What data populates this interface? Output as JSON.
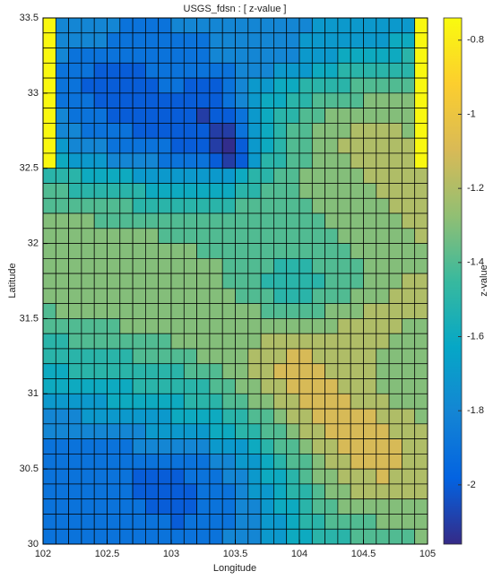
{
  "chart_data": {
    "type": "heatmap",
    "title": "USGS_fdsn : [ z-value ]",
    "x_label": "Longitude",
    "y_label": "Latitude",
    "colorbar_label": "z-value",
    "colormap": "parula",
    "xlim": [
      102,
      105
    ],
    "ylim": [
      30,
      33.5
    ],
    "xticks": [
      102,
      102.5,
      103,
      103.5,
      104,
      104.5,
      105
    ],
    "yticks": [
      30,
      30.5,
      31,
      31.5,
      32,
      32.5,
      33,
      33.5
    ],
    "zlim": [
      -2.16,
      -0.74
    ],
    "zticks": [
      -2,
      -1.8,
      -1.6,
      -1.4,
      -1.2,
      -1,
      -0.8
    ],
    "z": [
      [
        -0.75,
        -1.8,
        -1.8,
        -1.8,
        -1.8,
        -1.8,
        -1.9,
        -1.9,
        -1.9,
        -1.9,
        -1.8,
        -1.8,
        -1.8,
        -1.8,
        -1.8,
        -1.8,
        -1.8,
        -1.8,
        -1.8,
        -1.8,
        -1.8,
        -1.7,
        -1.7,
        -1.7,
        -1.7,
        -1.7,
        -1.7,
        -1.7,
        -1.7,
        -0.75
      ],
      [
        -0.75,
        -1.8,
        -1.8,
        -1.8,
        -1.8,
        -1.9,
        -1.9,
        -1.9,
        -1.9,
        -1.9,
        -1.9,
        -1.9,
        -1.9,
        -1.8,
        -1.8,
        -1.8,
        -1.8,
        -1.8,
        -1.8,
        -1.8,
        -1.7,
        -1.7,
        -1.7,
        -1.7,
        -1.7,
        -1.7,
        -1.7,
        -1.6,
        -1.6,
        -0.75
      ],
      [
        -0.75,
        -1.8,
        -1.9,
        -1.9,
        -1.9,
        -1.9,
        -1.9,
        -1.9,
        -1.9,
        -1.9,
        -1.9,
        -1.9,
        -1.9,
        -1.8,
        -1.8,
        -1.8,
        -1.8,
        -1.8,
        -1.8,
        -1.8,
        -1.7,
        -1.7,
        -1.7,
        -1.6,
        -1.6,
        -1.6,
        -1.6,
        -1.6,
        -1.5,
        -0.75
      ],
      [
        -0.75,
        -1.9,
        -1.9,
        -1.9,
        -2.0,
        -2.0,
        -2.0,
        -2.0,
        -1.9,
        -1.9,
        -1.9,
        -1.9,
        -1.9,
        -1.9,
        -1.9,
        -1.8,
        -1.8,
        -1.8,
        -1.7,
        -1.7,
        -1.7,
        -1.6,
        -1.6,
        -1.5,
        -1.5,
        -1.5,
        -1.5,
        -1.5,
        -1.5,
        -0.75
      ],
      [
        -0.75,
        -1.9,
        -1.9,
        -2.0,
        -2.0,
        -2.0,
        -2.0,
        -2.0,
        -2.0,
        -1.9,
        -1.9,
        -2.0,
        -2.0,
        -2.0,
        -1.9,
        -1.8,
        -1.7,
        -1.7,
        -1.6,
        -1.6,
        -1.5,
        -1.5,
        -1.5,
        -1.5,
        -1.4,
        -1.4,
        -1.4,
        -1.4,
        -1.4,
        -0.75
      ],
      [
        -0.75,
        -1.9,
        -1.9,
        -1.9,
        -2.0,
        -2.0,
        -2.0,
        -2.0,
        -2.0,
        -2.0,
        -2.0,
        -2.0,
        -2.0,
        -2.0,
        -1.9,
        -1.8,
        -1.7,
        -1.6,
        -1.6,
        -1.5,
        -1.5,
        -1.4,
        -1.4,
        -1.4,
        -1.4,
        -1.3,
        -1.3,
        -1.3,
        -1.3,
        -0.75
      ],
      [
        -0.75,
        -1.8,
        -1.9,
        -1.9,
        -1.9,
        -2.0,
        -2.0,
        -2.0,
        -2.0,
        -2.0,
        -2.0,
        -2.0,
        -2.1,
        -2.0,
        -2.0,
        -1.9,
        -1.7,
        -1.6,
        -1.5,
        -1.5,
        -1.4,
        -1.4,
        -1.3,
        -1.3,
        -1.3,
        -1.3,
        -1.3,
        -1.3,
        -1.3,
        -0.75
      ],
      [
        -0.75,
        -1.8,
        -1.8,
        -1.9,
        -1.9,
        -1.9,
        -1.9,
        -2.0,
        -2.0,
        -2.0,
        -2.0,
        -2.0,
        -2.0,
        -2.1,
        -2.1,
        -1.9,
        -1.7,
        -1.6,
        -1.5,
        -1.4,
        -1.4,
        -1.3,
        -1.3,
        -1.3,
        -1.2,
        -1.2,
        -1.2,
        -1.2,
        -1.3,
        -0.75
      ],
      [
        -0.75,
        -1.7,
        -1.8,
        -1.8,
        -1.8,
        -1.9,
        -1.9,
        -1.9,
        -1.9,
        -1.9,
        -2.0,
        -2.0,
        -2.0,
        -2.1,
        -2.15,
        -2.0,
        -1.7,
        -1.6,
        -1.5,
        -1.4,
        -1.4,
        -1.3,
        -1.3,
        -1.2,
        -1.2,
        -1.2,
        -1.2,
        -1.2,
        -1.2,
        -0.75
      ],
      [
        -0.75,
        -1.6,
        -1.7,
        -1.7,
        -1.7,
        -1.8,
        -1.8,
        -1.8,
        -1.8,
        -1.9,
        -1.9,
        -1.9,
        -1.9,
        -2.0,
        -2.1,
        -2.0,
        -1.7,
        -1.5,
        -1.5,
        -1.4,
        -1.4,
        -1.3,
        -1.3,
        -1.3,
        -1.2,
        -1.2,
        -1.2,
        -1.2,
        -1.2,
        -0.75
      ],
      [
        -1.5,
        -1.5,
        -1.5,
        -1.6,
        -1.6,
        -1.6,
        -1.6,
        -1.7,
        -1.7,
        -1.7,
        -1.7,
        -1.7,
        -1.7,
        -1.7,
        -1.7,
        -1.6,
        -1.5,
        -1.5,
        -1.4,
        -1.4,
        -1.3,
        -1.3,
        -1.3,
        -1.3,
        -1.3,
        -1.2,
        -1.2,
        -1.2,
        -1.2,
        -1.2
      ],
      [
        -1.4,
        -1.4,
        -1.5,
        -1.5,
        -1.5,
        -1.5,
        -1.5,
        -1.5,
        -1.6,
        -1.6,
        -1.6,
        -1.6,
        -1.6,
        -1.6,
        -1.6,
        -1.5,
        -1.5,
        -1.4,
        -1.4,
        -1.4,
        -1.3,
        -1.3,
        -1.3,
        -1.3,
        -1.3,
        -1.3,
        -1.2,
        -1.2,
        -1.2,
        -1.2
      ],
      [
        -1.4,
        -1.4,
        -1.4,
        -1.4,
        -1.4,
        -1.4,
        -1.4,
        -1.5,
        -1.5,
        -1.5,
        -1.5,
        -1.5,
        -1.5,
        -1.5,
        -1.5,
        -1.4,
        -1.4,
        -1.4,
        -1.4,
        -1.4,
        -1.4,
        -1.3,
        -1.3,
        -1.3,
        -1.3,
        -1.3,
        -1.3,
        -1.2,
        -1.2,
        -1.2
      ],
      [
        -1.3,
        -1.3,
        -1.3,
        -1.3,
        -1.4,
        -1.4,
        -1.4,
        -1.4,
        -1.4,
        -1.4,
        -1.4,
        -1.4,
        -1.4,
        -1.4,
        -1.4,
        -1.4,
        -1.4,
        -1.4,
        -1.4,
        -1.4,
        -1.4,
        -1.4,
        -1.3,
        -1.3,
        -1.3,
        -1.3,
        -1.3,
        -1.3,
        -1.2,
        -1.2
      ],
      [
        -1.3,
        -1.3,
        -1.3,
        -1.3,
        -1.3,
        -1.3,
        -1.3,
        -1.3,
        -1.3,
        -1.4,
        -1.4,
        -1.4,
        -1.4,
        -1.4,
        -1.4,
        -1.4,
        -1.4,
        -1.4,
        -1.4,
        -1.4,
        -1.4,
        -1.4,
        -1.4,
        -1.3,
        -1.3,
        -1.3,
        -1.3,
        -1.3,
        -1.3,
        -1.2
      ],
      [
        -1.3,
        -1.3,
        -1.3,
        -1.3,
        -1.3,
        -1.3,
        -1.3,
        -1.3,
        -1.3,
        -1.3,
        -1.3,
        -1.3,
        -1.4,
        -1.4,
        -1.4,
        -1.4,
        -1.4,
        -1.4,
        -1.4,
        -1.4,
        -1.4,
        -1.4,
        -1.4,
        -1.4,
        -1.3,
        -1.3,
        -1.3,
        -1.3,
        -1.3,
        -1.3
      ],
      [
        -1.3,
        -1.3,
        -1.3,
        -1.3,
        -1.3,
        -1.3,
        -1.3,
        -1.3,
        -1.3,
        -1.3,
        -1.3,
        -1.3,
        -1.3,
        -1.3,
        -1.4,
        -1.4,
        -1.4,
        -1.4,
        -1.5,
        -1.5,
        -1.5,
        -1.4,
        -1.4,
        -1.4,
        -1.4,
        -1.3,
        -1.3,
        -1.3,
        -1.3,
        -1.3
      ],
      [
        -1.3,
        -1.3,
        -1.3,
        -1.3,
        -1.3,
        -1.3,
        -1.3,
        -1.3,
        -1.3,
        -1.3,
        -1.3,
        -1.3,
        -1.3,
        -1.3,
        -1.4,
        -1.4,
        -1.4,
        -1.5,
        -1.5,
        -1.5,
        -1.5,
        -1.5,
        -1.4,
        -1.4,
        -1.4,
        -1.3,
        -1.3,
        -1.3,
        -1.2,
        -1.2
      ],
      [
        -1.3,
        -1.3,
        -1.3,
        -1.3,
        -1.3,
        -1.3,
        -1.3,
        -1.3,
        -1.3,
        -1.3,
        -1.3,
        -1.3,
        -1.3,
        -1.3,
        -1.3,
        -1.4,
        -1.4,
        -1.4,
        -1.5,
        -1.5,
        -1.5,
        -1.4,
        -1.4,
        -1.4,
        -1.3,
        -1.3,
        -1.3,
        -1.2,
        -1.2,
        -1.2
      ],
      [
        -1.4,
        -1.3,
        -1.3,
        -1.3,
        -1.3,
        -1.3,
        -1.3,
        -1.3,
        -1.3,
        -1.3,
        -1.3,
        -1.3,
        -1.3,
        -1.3,
        -1.3,
        -1.3,
        -1.3,
        -1.4,
        -1.4,
        -1.4,
        -1.4,
        -1.4,
        -1.3,
        -1.3,
        -1.3,
        -1.2,
        -1.2,
        -1.2,
        -1.2,
        -1.2
      ],
      [
        -1.4,
        -1.4,
        -1.4,
        -1.4,
        -1.4,
        -1.4,
        -1.3,
        -1.3,
        -1.3,
        -1.3,
        -1.3,
        -1.3,
        -1.3,
        -1.3,
        -1.3,
        -1.3,
        -1.3,
        -1.3,
        -1.3,
        -1.3,
        -1.3,
        -1.3,
        -1.3,
        -1.2,
        -1.2,
        -1.2,
        -1.2,
        -1.2,
        -1.3,
        -1.3
      ],
      [
        -1.5,
        -1.5,
        -1.4,
        -1.4,
        -1.4,
        -1.4,
        -1.4,
        -1.4,
        -1.4,
        -1.4,
        -1.3,
        -1.3,
        -1.3,
        -1.3,
        -1.3,
        -1.3,
        -1.3,
        -1.2,
        -1.2,
        -1.2,
        -1.2,
        -1.2,
        -1.2,
        -1.2,
        -1.2,
        -1.2,
        -1.2,
        -1.3,
        -1.3,
        -1.3
      ],
      [
        -1.5,
        -1.5,
        -1.5,
        -1.5,
        -1.5,
        -1.5,
        -1.5,
        -1.4,
        -1.4,
        -1.4,
        -1.4,
        -1.4,
        -1.3,
        -1.3,
        -1.3,
        -1.3,
        -1.2,
        -1.2,
        -1.2,
        -1.1,
        -1.1,
        -1.2,
        -1.2,
        -1.2,
        -1.2,
        -1.2,
        -1.3,
        -1.3,
        -1.3,
        -1.3
      ],
      [
        -1.6,
        -1.6,
        -1.5,
        -1.5,
        -1.5,
        -1.5,
        -1.5,
        -1.5,
        -1.5,
        -1.5,
        -1.5,
        -1.4,
        -1.4,
        -1.4,
        -1.3,
        -1.3,
        -1.2,
        -1.2,
        -1.1,
        -1.1,
        -1.1,
        -1.1,
        -1.2,
        -1.2,
        -1.2,
        -1.2,
        -1.3,
        -1.3,
        -1.3,
        -1.3
      ],
      [
        -1.6,
        -1.6,
        -1.6,
        -1.6,
        -1.6,
        -1.6,
        -1.6,
        -1.5,
        -1.5,
        -1.5,
        -1.5,
        -1.5,
        -1.5,
        -1.4,
        -1.4,
        -1.3,
        -1.3,
        -1.2,
        -1.2,
        -1.1,
        -1.1,
        -1.1,
        -1.1,
        -1.2,
        -1.2,
        -1.2,
        -1.3,
        -1.3,
        -1.3,
        -1.3
      ],
      [
        -1.7,
        -1.7,
        -1.7,
        -1.7,
        -1.7,
        -1.6,
        -1.6,
        -1.6,
        -1.6,
        -1.6,
        -1.6,
        -1.5,
        -1.5,
        -1.5,
        -1.4,
        -1.4,
        -1.3,
        -1.3,
        -1.2,
        -1.2,
        -1.1,
        -1.1,
        -1.1,
        -1.1,
        -1.2,
        -1.2,
        -1.2,
        -1.3,
        -1.3,
        -1.3
      ],
      [
        -1.8,
        -1.8,
        -1.8,
        -1.7,
        -1.7,
        -1.7,
        -1.7,
        -1.7,
        -1.7,
        -1.7,
        -1.6,
        -1.6,
        -1.6,
        -1.6,
        -1.5,
        -1.5,
        -1.4,
        -1.4,
        -1.3,
        -1.2,
        -1.2,
        -1.1,
        -1.1,
        -1.1,
        -1.1,
        -1.1,
        -1.2,
        -1.2,
        -1.2,
        -1.3
      ],
      [
        -1.8,
        -1.8,
        -1.8,
        -1.8,
        -1.8,
        -1.8,
        -1.8,
        -1.8,
        -1.7,
        -1.7,
        -1.7,
        -1.7,
        -1.7,
        -1.6,
        -1.6,
        -1.5,
        -1.5,
        -1.4,
        -1.4,
        -1.3,
        -1.2,
        -1.2,
        -1.1,
        -1.1,
        -1.1,
        -1.1,
        -1.1,
        -1.2,
        -1.2,
        -1.2
      ],
      [
        -1.9,
        -1.9,
        -1.9,
        -1.9,
        -1.9,
        -1.9,
        -1.9,
        -1.8,
        -1.8,
        -1.8,
        -1.8,
        -1.8,
        -1.8,
        -1.7,
        -1.7,
        -1.7,
        -1.6,
        -1.5,
        -1.4,
        -1.4,
        -1.3,
        -1.2,
        -1.2,
        -1.1,
        -1.1,
        -1.1,
        -1.1,
        -1.1,
        -1.2,
        -1.2
      ],
      [
        -1.9,
        -1.9,
        -1.9,
        -1.9,
        -1.9,
        -1.9,
        -1.9,
        -1.9,
        -1.9,
        -1.9,
        -1.9,
        -1.9,
        -1.9,
        -1.8,
        -1.8,
        -1.7,
        -1.7,
        -1.6,
        -1.5,
        -1.4,
        -1.4,
        -1.3,
        -1.2,
        -1.2,
        -1.1,
        -1.1,
        -1.1,
        -1.1,
        -1.2,
        -1.2
      ],
      [
        -1.9,
        -1.9,
        -1.9,
        -1.9,
        -1.9,
        -1.9,
        -1.9,
        -2.0,
        -2.0,
        -2.0,
        -2.0,
        -1.9,
        -1.9,
        -1.9,
        -1.8,
        -1.8,
        -1.7,
        -1.6,
        -1.6,
        -1.5,
        -1.4,
        -1.3,
        -1.3,
        -1.2,
        -1.2,
        -1.2,
        -1.1,
        -1.2,
        -1.2,
        -1.2
      ],
      [
        -1.9,
        -1.9,
        -1.9,
        -1.9,
        -1.9,
        -1.9,
        -1.9,
        -2.0,
        -2.0,
        -2.0,
        -2.0,
        -2.0,
        -1.9,
        -1.9,
        -1.9,
        -1.8,
        -1.7,
        -1.7,
        -1.6,
        -1.5,
        -1.5,
        -1.4,
        -1.3,
        -1.3,
        -1.2,
        -1.2,
        -1.2,
        -1.2,
        -1.2,
        -1.2
      ],
      [
        -1.9,
        -1.9,
        -1.9,
        -1.9,
        -1.9,
        -1.9,
        -1.9,
        -1.9,
        -2.0,
        -2.0,
        -2.0,
        -2.0,
        -1.9,
        -1.9,
        -1.9,
        -1.8,
        -1.8,
        -1.7,
        -1.6,
        -1.6,
        -1.5,
        -1.4,
        -1.4,
        -1.3,
        -1.3,
        -1.3,
        -1.3,
        -1.3,
        -1.3,
        -1.3
      ],
      [
        -1.9,
        -1.9,
        -1.9,
        -1.9,
        -1.9,
        -1.9,
        -1.9,
        -1.9,
        -1.9,
        -1.9,
        -2.0,
        -1.9,
        -1.9,
        -1.9,
        -1.9,
        -1.8,
        -1.8,
        -1.7,
        -1.7,
        -1.6,
        -1.5,
        -1.5,
        -1.4,
        -1.4,
        -1.4,
        -1.4,
        -1.3,
        -1.3,
        -1.3,
        -1.3
      ],
      [
        -1.9,
        -1.9,
        -1.9,
        -1.9,
        -1.9,
        -1.9,
        -1.9,
        -1.9,
        -1.9,
        -1.9,
        -1.9,
        -1.9,
        -1.9,
        -1.9,
        -1.8,
        -1.8,
        -1.8,
        -1.7,
        -1.7,
        -1.6,
        -1.6,
        -1.5,
        -1.5,
        -1.5,
        -1.4,
        -1.4,
        -1.4,
        -1.4,
        -1.4,
        -1.3
      ]
    ]
  }
}
